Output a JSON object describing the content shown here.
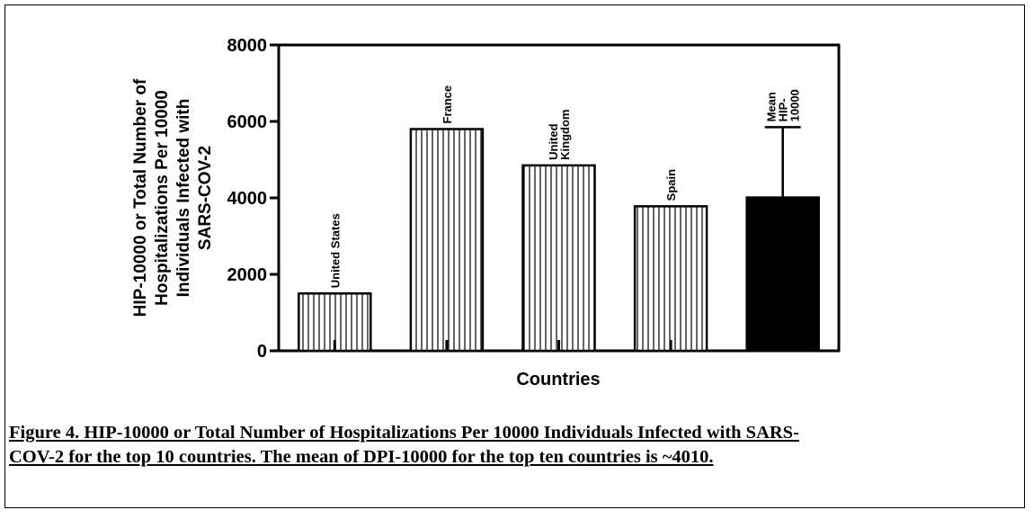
{
  "chart_data": {
    "type": "bar",
    "categories": [
      "United States",
      "France",
      "United Kingdom",
      "Spain",
      "Mean HIP-10000"
    ],
    "bar_labels": [
      [
        "United States"
      ],
      [
        "France"
      ],
      [
        "United",
        "Kingdom"
      ],
      [
        "Spain"
      ],
      [
        "Mean",
        "HIP-",
        "10000"
      ]
    ],
    "values": [
      1500,
      5800,
      4850,
      3780,
      4010
    ],
    "error_bar": {
      "category": "Mean HIP-10000",
      "upper": 5850
    },
    "bar_styles": [
      "hatched",
      "hatched",
      "hatched",
      "hatched",
      "solid"
    ],
    "ylabel_lines": [
      "HIP-10000 or Total Number of",
      "Hospitalizations Per 10000",
      "Individuals Infected with",
      "SARS-COV-2"
    ],
    "xlabel": "Countries",
    "ylim": [
      0,
      8000
    ],
    "yticks": [
      0,
      2000,
      4000,
      6000,
      8000
    ],
    "grid": false
  },
  "caption": {
    "line1": "Figure 4. HIP-10000 or Total Number of Hospitalizations Per 10000 Individuals Infected with SARS-",
    "line2": "COV-2 for the top 10 countries. The mean of DPI-10000 for the top ten countries is ~4010."
  },
  "colors": {
    "ink": "#000000",
    "background": "#ffffff"
  }
}
